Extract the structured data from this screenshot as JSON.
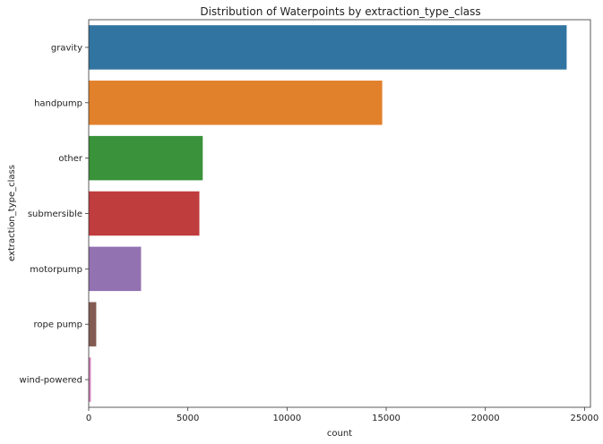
{
  "chart_data": {
    "type": "bar",
    "orientation": "horizontal",
    "title": "Distribution of Waterpoints by extraction_type_class",
    "xlabel": "count",
    "ylabel": "extraction_type_class",
    "xlim": [
      0,
      25300
    ],
    "xticks": [
      0,
      5000,
      10000,
      15000,
      20000,
      25000
    ],
    "grid": false,
    "categories": [
      "gravity",
      "handpump",
      "other",
      "submersible",
      "motorpump",
      "rope pump",
      "wind-powered"
    ],
    "values": [
      24100,
      14800,
      5750,
      5580,
      2640,
      380,
      110
    ],
    "colors": [
      "#3274a1",
      "#e1812c",
      "#3a923a",
      "#c03d3e",
      "#9372b2",
      "#845b53",
      "#d684bd"
    ]
  }
}
